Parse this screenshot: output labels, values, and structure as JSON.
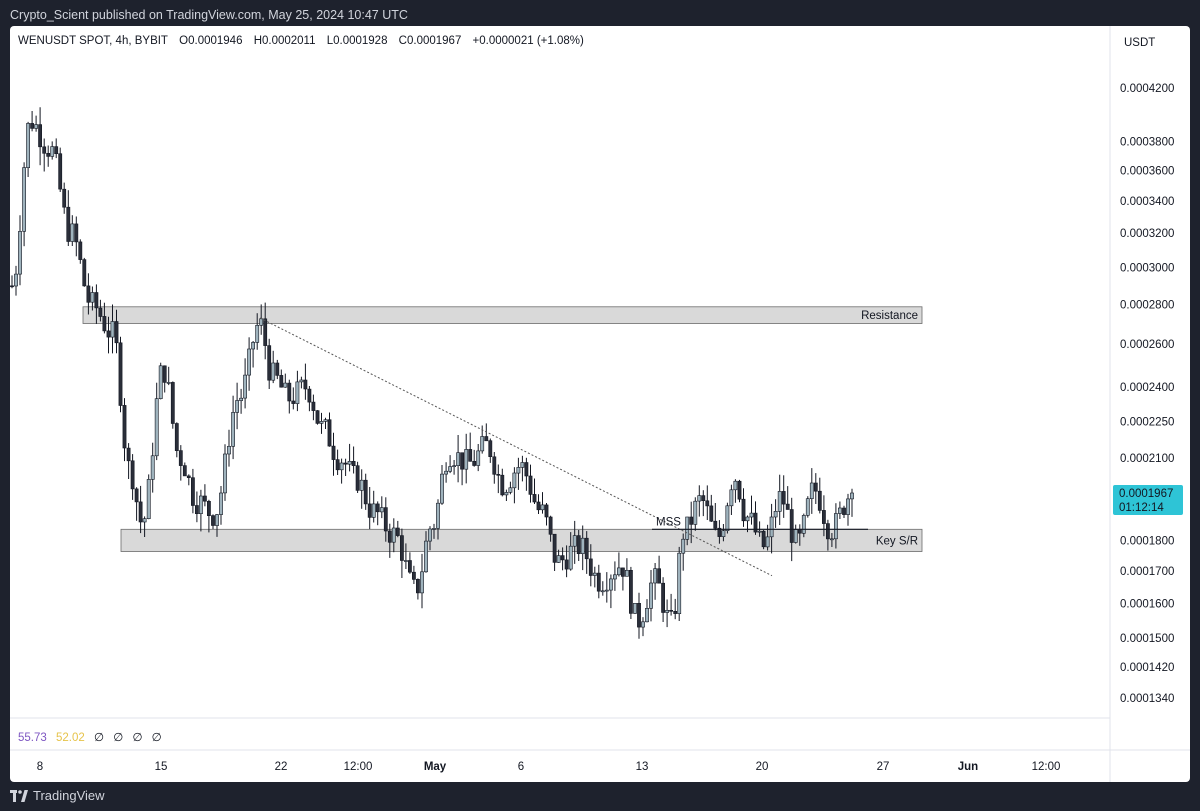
{
  "header": {
    "attribution": "Crypto_Scient published on TradingView.com, May 25, 2024 10:47 UTC"
  },
  "legend": {
    "symbol": "WENUSDT SPOT, 4h, BYBIT",
    "open": "O0.0001946",
    "high": "H0.0002011",
    "low": "L0.0001928",
    "close": "C0.0001967",
    "change": "+0.0000021 (+1.08%)"
  },
  "indicators": {
    "value1": "55.73",
    "value2": "52.02",
    "nulls": [
      "∅",
      "∅",
      "∅",
      "∅"
    ]
  },
  "price_axis": {
    "unit": "USDT",
    "current_price": "0.0001967",
    "countdown": "01:12:14"
  },
  "annotations": {
    "resistance": "Resistance",
    "key_sr": "Key S/R",
    "mss": "MSS"
  },
  "footer": {
    "brand": "TradingView"
  },
  "colors": {
    "candle_up": "#9fb3bd",
    "candle_down": "#2a2e39",
    "price_label_bg": "#2ec4d6",
    "indicator1": "#7e57c2",
    "indicator2": "#e6c34a"
  },
  "chart_data": {
    "type": "candlestick",
    "symbol": "WENUSDT",
    "interval": "4h",
    "exchange": "BYBIT",
    "y_scale": "log",
    "yticks": [
      "0.0004200",
      "0.0003800",
      "0.0003600",
      "0.0003400",
      "0.0003200",
      "0.0003000",
      "0.0002800",
      "0.0002600",
      "0.0002400",
      "0.0002250",
      "0.0002100",
      "0.0001800",
      "0.0001700",
      "0.0001600",
      "0.0001500",
      "0.0001420",
      "0.0001340"
    ],
    "ytick_values": [
      0.00042,
      0.00038,
      0.00036,
      0.00034,
      0.00032,
      0.0003,
      0.00028,
      0.00026,
      0.00024,
      0.000225,
      0.00021,
      0.00018,
      0.00017,
      0.00016,
      0.00015,
      0.000142,
      0.000134
    ],
    "xticks": [
      "8",
      "15",
      "22",
      "12:00",
      "May",
      "6",
      "13",
      "20",
      "27",
      "Jun",
      "12:00"
    ],
    "bold_xticks": [
      "May",
      "Jun"
    ],
    "last_price": 0.0001967,
    "zones": [
      {
        "label": "Resistance",
        "from": 0.0002702,
        "to": 0.0002788
      },
      {
        "label": "Key S/R",
        "from": 0.0001763,
        "to": 0.0001838
      }
    ],
    "mss_level": 0.0001838,
    "swing_points": [
      {
        "t": 0.0,
        "v": 0.00029
      },
      {
        "t": 0.022,
        "v": 0.000395
      },
      {
        "t": 0.045,
        "v": 0.000375
      },
      {
        "t": 0.07,
        "v": 0.00032
      },
      {
        "t": 0.095,
        "v": 0.00028
      },
      {
        "t": 0.12,
        "v": 0.000265
      },
      {
        "t": 0.14,
        "v": 0.000206
      },
      {
        "t": 0.155,
        "v": 0.000186
      },
      {
        "t": 0.18,
        "v": 0.000248
      },
      {
        "t": 0.2,
        "v": 0.00021
      },
      {
        "t": 0.22,
        "v": 0.000194
      },
      {
        "t": 0.24,
        "v": 0.000189
      },
      {
        "t": 0.27,
        "v": 0.000235
      },
      {
        "t": 0.295,
        "v": 0.00027
      },
      {
        "t": 0.31,
        "v": 0.000245
      },
      {
        "t": 0.33,
        "v": 0.000235
      },
      {
        "t": 0.35,
        "v": 0.00024
      },
      {
        "t": 0.37,
        "v": 0.000222
      },
      {
        "t": 0.39,
        "v": 0.00021
      },
      {
        "t": 0.41,
        "v": 0.000202
      },
      {
        "t": 0.43,
        "v": 0.00019
      },
      {
        "t": 0.455,
        "v": 0.000182
      },
      {
        "t": 0.48,
        "v": 0.000164
      },
      {
        "t": 0.5,
        "v": 0.000185
      },
      {
        "t": 0.52,
        "v": 0.000212
      },
      {
        "t": 0.545,
        "v": 0.000208
      },
      {
        "t": 0.565,
        "v": 0.000215
      },
      {
        "t": 0.585,
        "v": 0.0002
      },
      {
        "t": 0.605,
        "v": 0.000207
      },
      {
        "t": 0.63,
        "v": 0.00019
      },
      {
        "t": 0.65,
        "v": 0.000173
      },
      {
        "t": 0.675,
        "v": 0.000178
      },
      {
        "t": 0.7,
        "v": 0.000167
      },
      {
        "t": 0.725,
        "v": 0.000172
      },
      {
        "t": 0.745,
        "v": 0.000155
      },
      {
        "t": 0.765,
        "v": 0.000167
      },
      {
        "t": 0.785,
        "v": 0.000154
      },
      {
        "t": 0.8,
        "v": 0.000183
      },
      {
        "t": 0.82,
        "v": 0.000194
      },
      {
        "t": 0.84,
        "v": 0.000181
      },
      {
        "t": 0.86,
        "v": 0.000203
      },
      {
        "t": 0.875,
        "v": 0.000188
      },
      {
        "t": 0.895,
        "v": 0.000178
      },
      {
        "t": 0.915,
        "v": 0.000195
      },
      {
        "t": 0.935,
        "v": 0.000179
      },
      {
        "t": 0.955,
        "v": 0.000198
      },
      {
        "t": 0.975,
        "v": 0.000184
      },
      {
        "t": 1.0,
        "v": 0.0001967
      }
    ]
  }
}
